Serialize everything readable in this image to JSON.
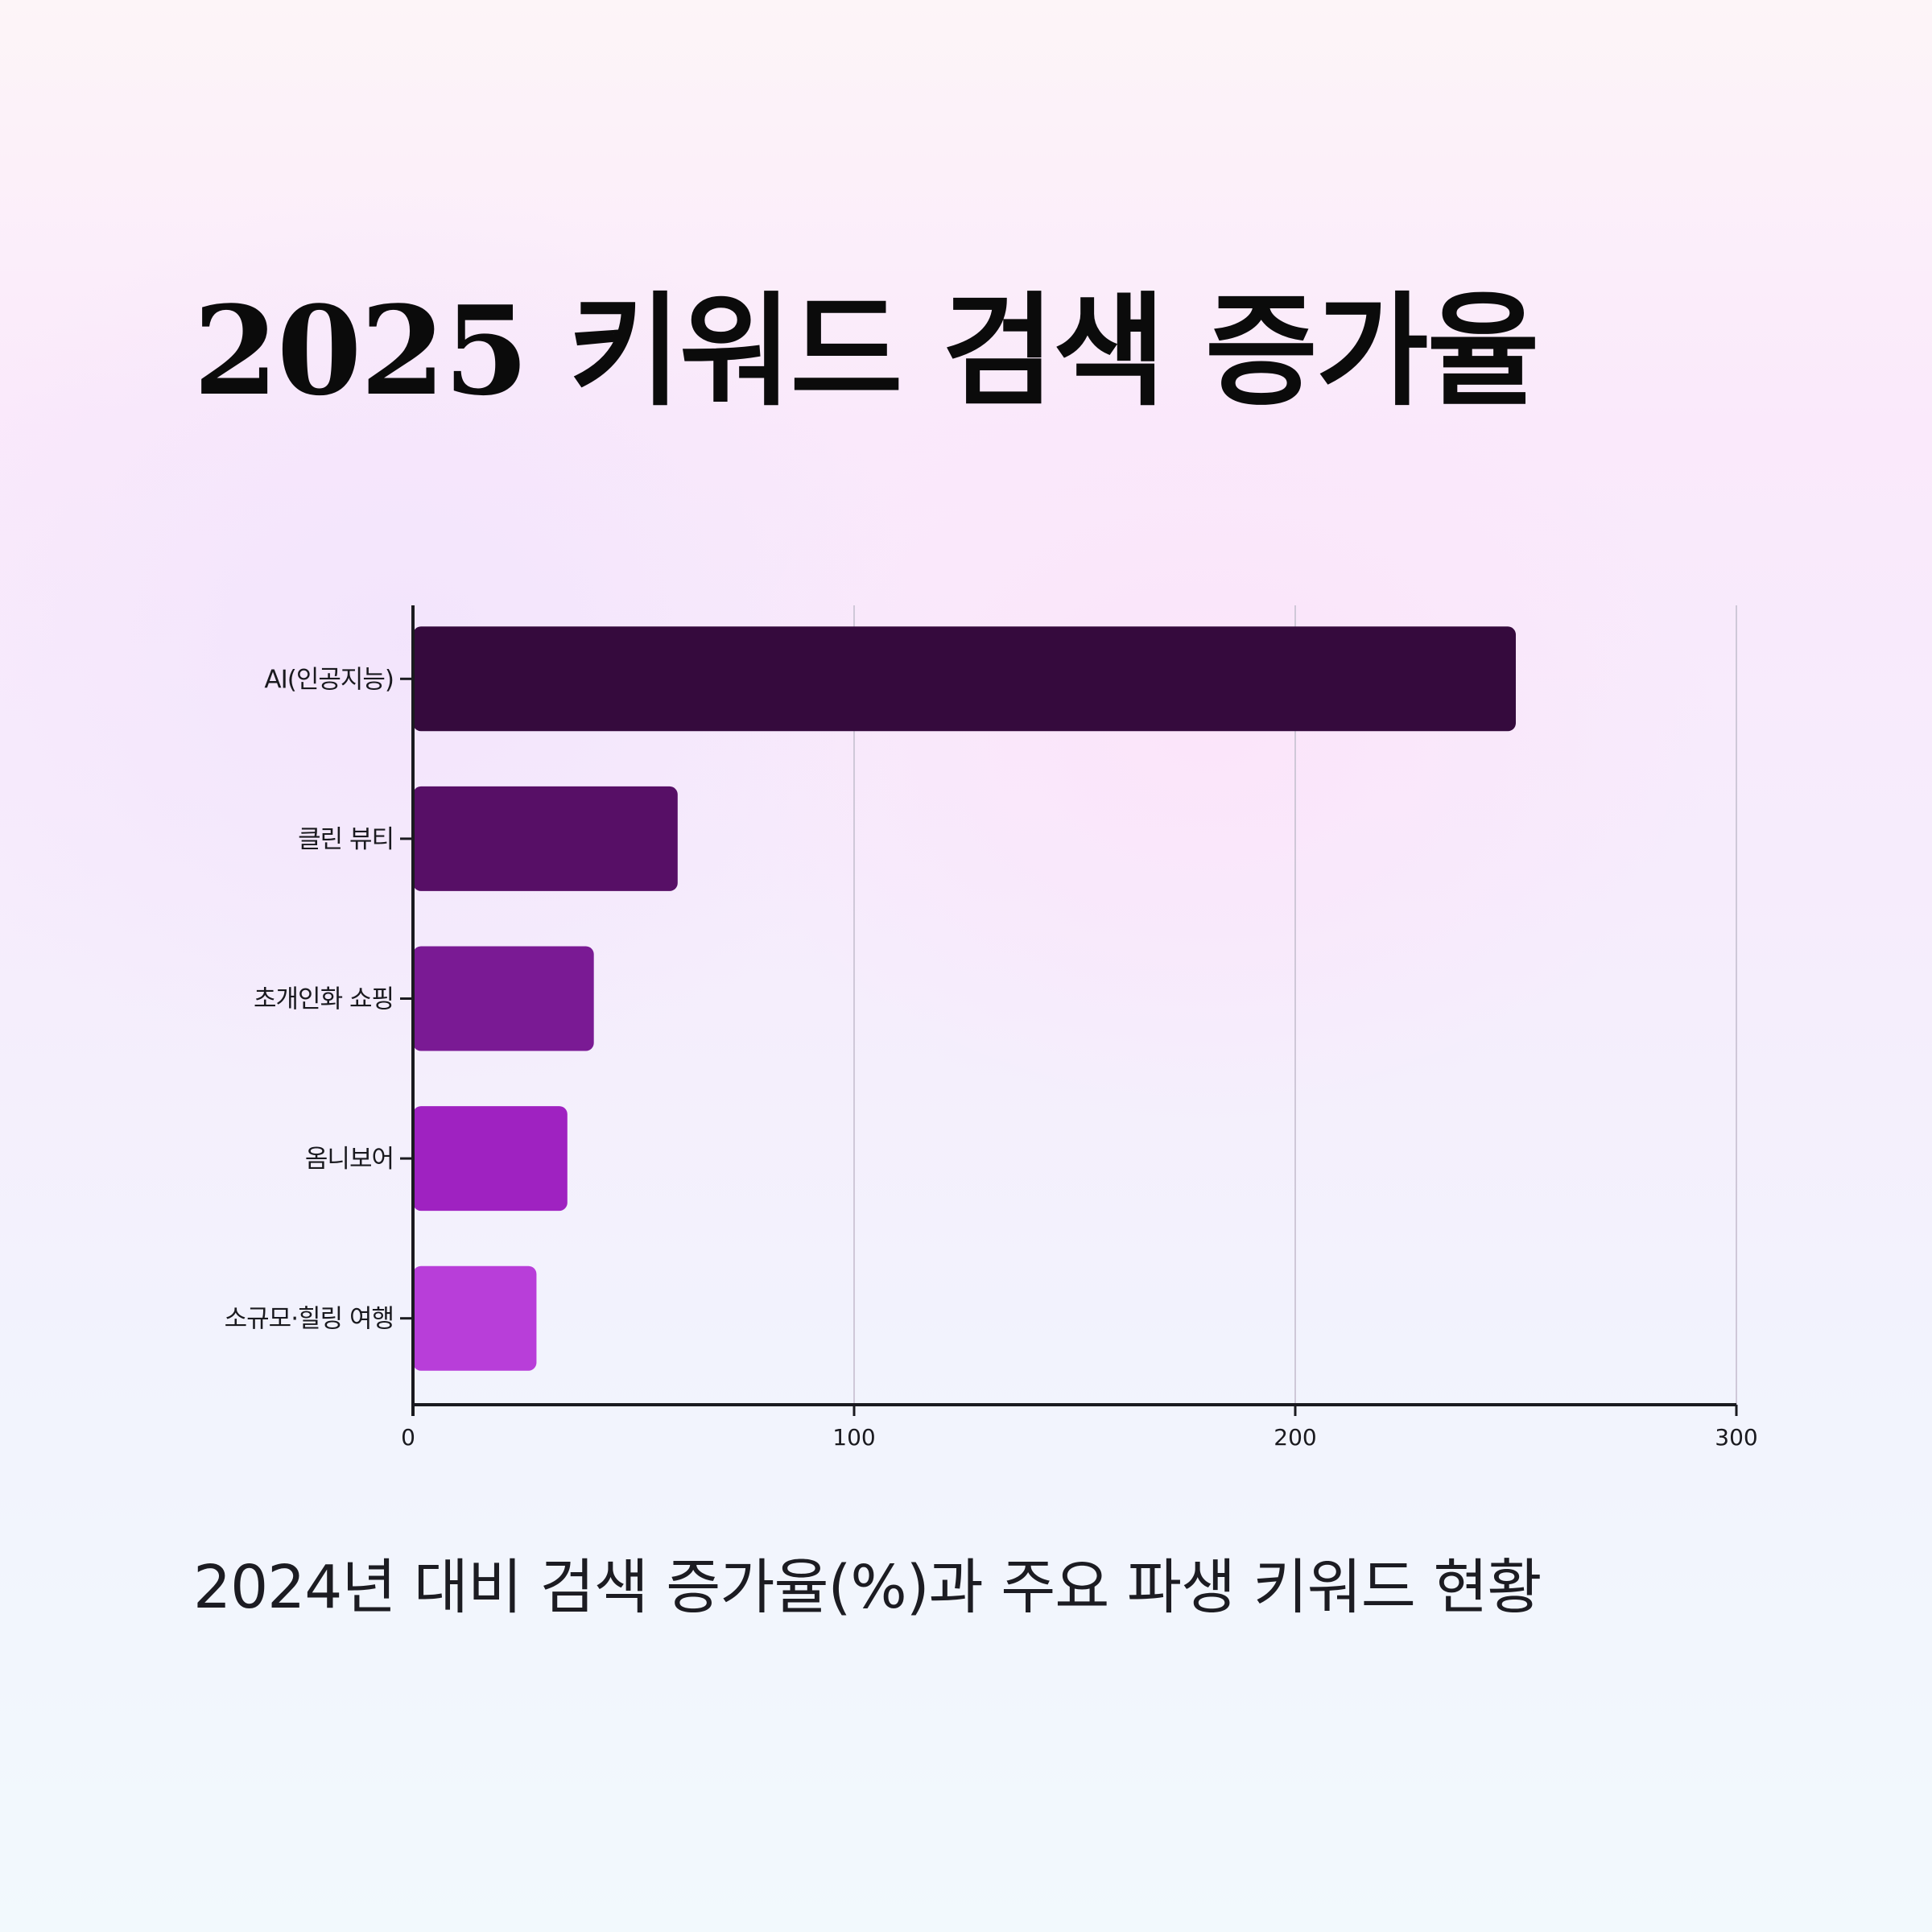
{
  "header": {
    "title": "2025 키워드 검색 증가율",
    "subtitle": "2024년 대비 검색 증가율(%)과 주요 파생 키워드 현황"
  },
  "chart_data": {
    "type": "bar",
    "orientation": "horizontal",
    "title": "2025 키워드 검색 증가율",
    "subtitle": "2024년 대비 검색 증가율(%)과 주요 파생 키워드 현황",
    "xlabel": "",
    "ylabel": "",
    "categories": [
      "AI(인공지능)",
      "클린 뷰티",
      "초개인화 쇼핑",
      "옴니보어",
      "소규모·힐링 여행"
    ],
    "values": [
      250,
      60,
      41,
      35,
      28
    ],
    "xlim": [
      0,
      300
    ],
    "xticks": [
      "0",
      "100",
      "200",
      "300"
    ],
    "grid": "vertical",
    "legend": "none",
    "colors": [
      "#350a3d",
      "#570f66",
      "#7a1a94",
      "#9f22c1",
      "#b83ed9"
    ]
  }
}
